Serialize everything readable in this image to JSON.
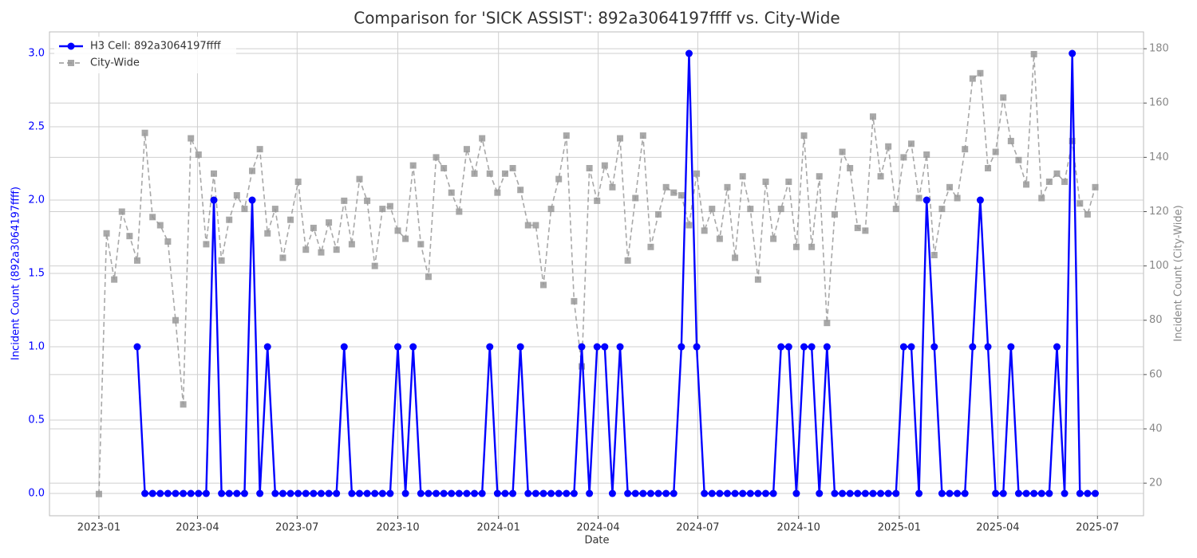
{
  "chart_data": {
    "type": "line",
    "title": "Comparison for 'SICK ASSIST': 892a3064197ffff vs. City-Wide",
    "xlabel": "Date",
    "ylabel": "Incident Count (892a3064197ffff)",
    "y2label": "Incident Count (City-Wide)",
    "x": [
      0,
      1,
      2,
      3,
      4,
      5,
      6,
      7,
      8,
      9,
      10,
      11,
      12,
      13,
      14,
      15,
      16,
      17,
      18,
      19,
      20,
      21,
      22,
      23,
      24,
      25,
      26,
      27,
      28,
      29,
      30,
      31,
      32,
      33,
      34,
      35,
      36,
      37,
      38,
      39,
      40,
      41,
      42,
      43,
      44,
      45,
      46,
      47,
      48,
      49,
      50,
      51,
      52,
      53,
      54,
      55,
      56,
      57,
      58,
      59,
      60,
      61,
      62,
      63,
      64,
      65,
      66,
      67,
      68,
      69,
      70,
      71,
      72,
      73,
      74,
      75,
      76,
      77,
      78,
      79,
      80,
      81,
      82,
      83,
      84,
      85,
      86,
      87,
      88,
      89,
      90,
      91,
      92,
      93,
      94,
      95,
      96,
      97,
      98,
      99,
      100,
      101,
      102,
      103,
      104,
      105,
      106,
      107,
      108,
      109,
      110,
      111,
      112,
      113,
      114,
      115,
      116,
      117,
      118,
      119,
      120,
      121,
      122,
      123,
      124,
      125,
      126,
      127,
      128,
      129,
      130
    ],
    "series": [
      {
        "name": "H3 Cell: 892a3064197ffff",
        "color": "#0000ff",
        "axis": "y",
        "marker": "circle",
        "dashed": false,
        "values": [
          null,
          null,
          null,
          null,
          null,
          1,
          0,
          0,
          0,
          0,
          0,
          0,
          0,
          0,
          0,
          2,
          0,
          0,
          0,
          0,
          2,
          0,
          1,
          0,
          0,
          0,
          0,
          0,
          0,
          0,
          0,
          0,
          1,
          0,
          0,
          0,
          0,
          0,
          0,
          1,
          0,
          1,
          0,
          0,
          0,
          0,
          0,
          0,
          0,
          0,
          0,
          1,
          0,
          0,
          0,
          1,
          0,
          0,
          0,
          0,
          0,
          0,
          0,
          1,
          0,
          1,
          1,
          0,
          1,
          0,
          0,
          0,
          0,
          0,
          0,
          0,
          1,
          3,
          1,
          0,
          0,
          0,
          0,
          0,
          0,
          0,
          0,
          0,
          0,
          1,
          1,
          0,
          1,
          1,
          0,
          1,
          0,
          0,
          0,
          0,
          0,
          0,
          0,
          0,
          0,
          1,
          1,
          0,
          2,
          1,
          0,
          0,
          0,
          0,
          1,
          2,
          1,
          0,
          0,
          1,
          0,
          0,
          0,
          0,
          0,
          1,
          0,
          3,
          0,
          0,
          0
        ]
      },
      {
        "name": "City-Wide",
        "color": "#999999",
        "axis": "y2",
        "marker": "square",
        "dashed": true,
        "values": [
          16,
          112,
          95,
          120,
          111,
          102,
          149,
          118,
          115,
          109,
          80,
          49,
          147,
          141,
          108,
          134,
          102,
          117,
          126,
          121,
          135,
          143,
          112,
          121,
          103,
          117,
          131,
          106,
          114,
          105,
          116,
          106,
          124,
          108,
          132,
          124,
          100,
          121,
          122,
          113,
          110,
          137,
          108,
          96,
          140,
          136,
          127,
          120,
          143,
          134,
          147,
          134,
          127,
          134,
          136,
          128,
          115,
          115,
          93,
          121,
          132,
          148,
          87,
          63,
          136,
          124,
          137,
          129,
          147,
          102,
          125,
          148,
          107,
          119,
          129,
          127,
          126,
          115,
          134,
          113,
          121,
          110,
          129,
          103,
          133,
          121,
          95,
          131,
          110,
          121,
          131,
          107,
          148,
          107,
          133,
          79,
          119,
          142,
          136,
          114,
          113,
          155,
          133,
          144,
          121,
          140,
          145,
          125,
          141,
          104,
          121,
          129,
          125,
          143,
          169,
          171,
          136,
          142,
          162,
          146,
          139,
          130,
          178,
          125,
          131,
          134,
          131,
          146,
          123,
          119,
          129
        ]
      }
    ],
    "xlim": [
      -6.45,
      136.3
    ],
    "xticks": [
      {
        "value": 0,
        "label": "2023-01"
      },
      {
        "value": 12.86,
        "label": "2023-04"
      },
      {
        "value": 25.86,
        "label": "2023-07"
      },
      {
        "value": 39,
        "label": "2023-10"
      },
      {
        "value": 52.14,
        "label": "2024-01"
      },
      {
        "value": 65.14,
        "label": "2024-04"
      },
      {
        "value": 78.14,
        "label": "2024-07"
      },
      {
        "value": 91.29,
        "label": "2024-10"
      },
      {
        "value": 104.43,
        "label": "2025-01"
      },
      {
        "value": 117.29,
        "label": "2025-04"
      },
      {
        "value": 130.29,
        "label": "2025-07"
      }
    ],
    "ylim": [
      -0.152,
      3.147
    ],
    "yticks": [
      {
        "value": 0,
        "label": "0.0"
      },
      {
        "value": 0.5,
        "label": "0.5"
      },
      {
        "value": 1,
        "label": "1.0"
      },
      {
        "value": 1.5,
        "label": "1.5"
      },
      {
        "value": 2,
        "label": "2.0"
      },
      {
        "value": 2.5,
        "label": "2.5"
      },
      {
        "value": 3,
        "label": "3.0"
      }
    ],
    "y2lim": [
      8,
      186.2
    ],
    "y2ticks": [
      20,
      40,
      60,
      80,
      100,
      120,
      140,
      160,
      180
    ],
    "grid": true,
    "legend": "upper left"
  }
}
